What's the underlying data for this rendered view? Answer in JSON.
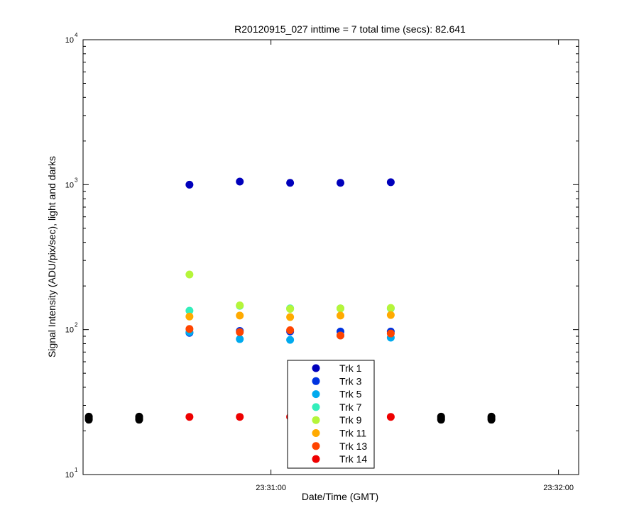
{
  "chart_data": {
    "type": "scatter",
    "title": "R20120915_027 inttime = 7 total time (secs): 82.641",
    "xlabel": "Date/Time (GMT)",
    "ylabel": "Signal Intensity (ADU/pix/sec), light and darks",
    "x_axis": {
      "unit": "seconds after 23:30:00 GMT",
      "range": [
        20.8,
        124.2
      ],
      "ticks": [
        {
          "value": 60,
          "label": "23:31:00"
        },
        {
          "value": 120,
          "label": "23:32:00"
        }
      ]
    },
    "y_axis": {
      "scale": "log",
      "range": [
        10,
        10000
      ],
      "ticks": [
        {
          "value": 10,
          "base": "10",
          "exp": "1"
        },
        {
          "value": 100,
          "base": "10",
          "exp": "2"
        },
        {
          "value": 1000,
          "base": "10",
          "exp": "3"
        },
        {
          "value": 10000,
          "base": "10",
          "exp": "4"
        }
      ]
    },
    "grid": false,
    "legend_position": "bottom-center",
    "series": [
      {
        "name": "Trk 1",
        "color": "#0000bb",
        "x": [
          43,
          53.5,
          64,
          74.5,
          85
        ],
        "y": [
          1000,
          1050,
          1030,
          1030,
          1040
        ]
      },
      {
        "name": "Trk 3",
        "color": "#0033e0",
        "x": [
          43,
          53.5,
          64,
          74.5,
          85
        ],
        "y": [
          95,
          98,
          97,
          97,
          97
        ]
      },
      {
        "name": "Trk 5",
        "color": "#00aaee",
        "x": [
          43,
          53.5,
          64,
          74.5,
          85
        ],
        "y": [
          96,
          86,
          85,
          91,
          88
        ]
      },
      {
        "name": "Trk 7",
        "color": "#33eebb",
        "x": [
          43,
          53.5,
          64,
          74.5,
          85
        ],
        "y": [
          135,
          146,
          140,
          140,
          140
        ]
      },
      {
        "name": "Trk 9",
        "color": "#b5f53a",
        "x": [
          43,
          53.5,
          64,
          74.5,
          85
        ],
        "y": [
          240,
          147,
          139,
          140,
          141
        ]
      },
      {
        "name": "Trk 11",
        "color": "#ffaa00",
        "x": [
          43,
          53.5,
          64,
          74.5,
          85
        ],
        "y": [
          123,
          125,
          122,
          125,
          126
        ]
      },
      {
        "name": "Trk 13",
        "color": "#ff4400",
        "x": [
          43,
          53.5,
          64,
          74.5,
          85
        ],
        "y": [
          101,
          96,
          99,
          91,
          94
        ]
      },
      {
        "name": "Trk 14",
        "color": "#ee0000",
        "x": [
          43,
          53.5,
          64,
          74.5,
          85
        ],
        "y": [
          25,
          25,
          25,
          25,
          25
        ]
      },
      {
        "color": "#000000",
        "x": [
          22,
          22,
          22,
          32.5,
          32.5,
          32.5,
          95.5,
          95.5,
          95.5,
          106,
          106,
          106
        ],
        "y": [
          23.9,
          24.5,
          25.1,
          23.9,
          24.5,
          25.1,
          23.9,
          24.5,
          25.1,
          23.9,
          24.5,
          25.1
        ]
      }
    ]
  }
}
